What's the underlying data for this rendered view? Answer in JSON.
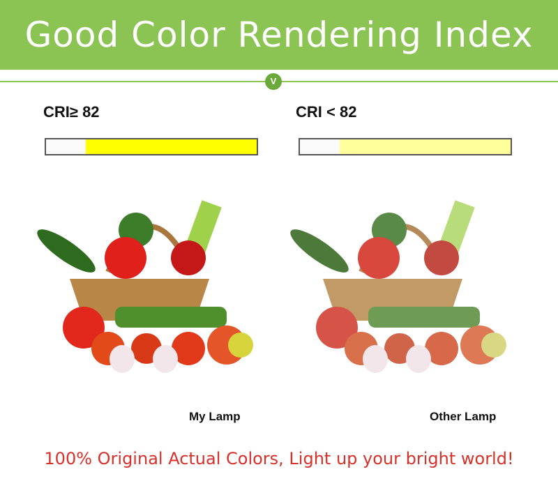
{
  "banner": {
    "title": "Good Color Rendering Index",
    "badge": "V",
    "color": "#8bc453"
  },
  "left": {
    "cri": "CRI≥ 82",
    "fill_percent": 81,
    "fill_color": "#ffff00",
    "label": "My Lamp"
  },
  "right": {
    "cri": "CRI < 82",
    "fill_percent": 81,
    "fill_color": "#ffff9c",
    "label": "Other Lamp"
  },
  "tagline": "100% Original Actual Colors, Light up your bright world!"
}
